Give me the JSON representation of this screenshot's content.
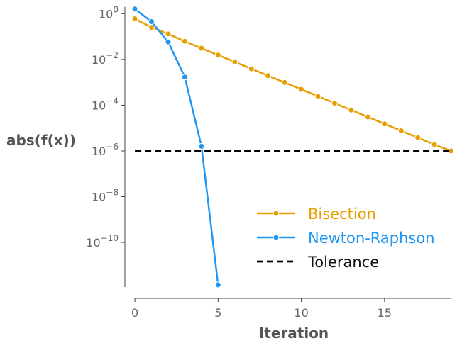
{
  "chart_data": {
    "type": "line",
    "xlabel": "Iteration",
    "ylabel": "abs(f(x))",
    "y_scale": "log",
    "xlim": [
      -0.6,
      19.1
    ],
    "ylim_log10": [
      -11.95,
      0.35
    ],
    "x_ticks": [
      {
        "value": 0,
        "label": "0"
      },
      {
        "value": 5,
        "label": "5"
      },
      {
        "value": 10,
        "label": "10"
      },
      {
        "value": 15,
        "label": "15"
      }
    ],
    "y_ticks": [
      {
        "exp": 0,
        "base": "10",
        "sup": "0"
      },
      {
        "exp": -2,
        "base": "10",
        "sup": "−2"
      },
      {
        "exp": -4,
        "base": "10",
        "sup": "−4"
      },
      {
        "exp": -6,
        "base": "10",
        "sup": "−6"
      },
      {
        "exp": -8,
        "base": "10",
        "sup": "−8"
      },
      {
        "exp": -10,
        "base": "10",
        "sup": "−10"
      }
    ],
    "series": [
      {
        "name": "Bisection",
        "color": "#E69F00",
        "x": [
          0,
          1,
          2,
          3,
          4,
          5,
          6,
          7,
          8,
          9,
          10,
          11,
          12,
          13,
          14,
          15,
          16,
          17,
          18,
          19
        ],
        "y": [
          0.6,
          0.25,
          0.13,
          0.062,
          0.031,
          0.0155,
          0.0078,
          0.0039,
          0.00195,
          0.00098,
          0.00049,
          0.000245,
          0.000122,
          6.1e-05,
          3.05e-05,
          1.53e-05,
          7.6e-06,
          3.8e-06,
          1.9e-06,
          1e-06
        ],
        "marker": "circle"
      },
      {
        "name": "Newton-Raphson",
        "color": "#2196F3",
        "x": [
          0,
          1,
          2,
          3,
          4,
          5
        ],
        "y": [
          1.6,
          0.45,
          0.058,
          0.0017,
          1.6e-06,
          1.4e-12
        ],
        "marker": "circle"
      },
      {
        "name": "Tolerance",
        "color": "#000000",
        "dash": "dashed",
        "x": [
          0,
          19
        ],
        "y": [
          1e-06,
          1e-06
        ]
      }
    ],
    "legend_position": "lower-right",
    "grid": false
  }
}
